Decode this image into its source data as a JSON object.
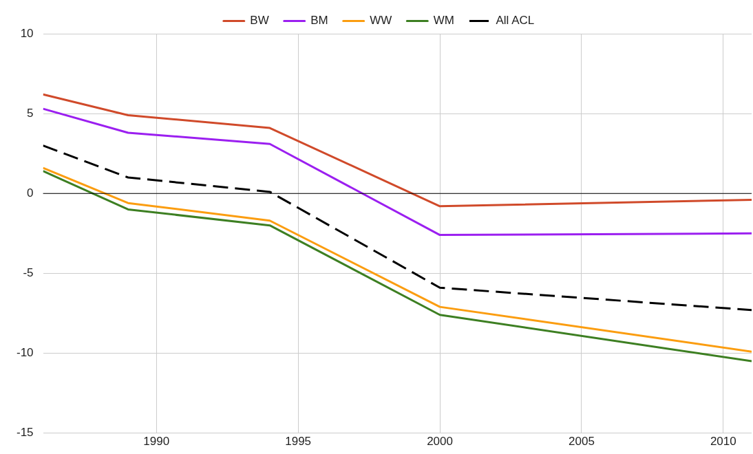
{
  "chart_data": {
    "type": "line",
    "x": [
      1986,
      1989,
      1994,
      2000,
      2011
    ],
    "series": [
      {
        "name": "BW",
        "color": "#d04a2a",
        "values": [
          6.2,
          4.9,
          4.1,
          -0.8,
          -0.4
        ]
      },
      {
        "name": "BM",
        "color": "#9b1ff0",
        "values": [
          5.3,
          3.8,
          3.1,
          -2.6,
          -2.5
        ]
      },
      {
        "name": "WW",
        "color": "#fb9d10",
        "values": [
          1.6,
          -0.6,
          -1.7,
          -7.1,
          -9.9
        ]
      },
      {
        "name": "WM",
        "color": "#3d7f22",
        "values": [
          1.4,
          -1.0,
          -2.0,
          -7.6,
          -10.5
        ]
      },
      {
        "name": "All ACL",
        "color": "#000000",
        "values": [
          3.0,
          1.0,
          0.1,
          -5.9,
          -7.3
        ],
        "line_style": "dashed"
      }
    ],
    "xlim": [
      1986,
      2011
    ],
    "xticks": [
      1990,
      1995,
      2000,
      2005,
      2010
    ],
    "ylim": [
      -15,
      10
    ],
    "yticks": [
      -15,
      -10,
      -5,
      0,
      5,
      10
    ],
    "ref_lines": [
      {
        "axis": "y",
        "value": 0,
        "color": "#000000"
      }
    ],
    "grid": true,
    "legend": "top",
    "marker": "none",
    "line_style": "solid"
  }
}
